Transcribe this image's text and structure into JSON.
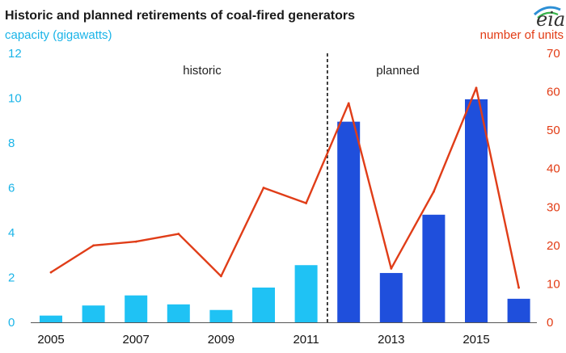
{
  "chart_data": {
    "type": "bar",
    "title": "Historic and planned retirements of coal-fired generators",
    "ylabel_left": "capacity (gigawatts)",
    "ylabel_right": "number of units",
    "logo": "eia",
    "x_tick_labels": [
      "2005",
      "2007",
      "2009",
      "2011",
      "2013",
      "2015"
    ],
    "regions": [
      {
        "label": "historic",
        "years": [
          2005,
          2011
        ]
      },
      {
        "label": "planned",
        "years": [
          2012,
          2016
        ]
      }
    ],
    "divider_between": [
      2011,
      2012
    ],
    "years": [
      2005,
      2006,
      2007,
      2008,
      2009,
      2010,
      2011,
      2012,
      2013,
      2014,
      2015,
      2016
    ],
    "series": [
      {
        "name": "capacity (gigawatts)",
        "type": "bar",
        "axis": "left",
        "values": [
          0.3,
          0.75,
          1.2,
          0.8,
          0.55,
          1.55,
          2.55,
          8.95,
          2.2,
          4.8,
          9.95,
          1.05
        ],
        "colors": {
          "historic": "#1fc2f4",
          "planned": "#1f4fdc"
        }
      },
      {
        "name": "number of units",
        "type": "line",
        "axis": "right",
        "values": [
          13,
          20,
          21,
          23,
          12,
          35,
          31,
          57,
          14,
          34,
          61,
          9
        ],
        "color": "#e03d18"
      }
    ],
    "ylim_left": [
      0,
      12
    ],
    "yticks_left": [
      0,
      2,
      4,
      6,
      8,
      10,
      12
    ],
    "ylim_right": [
      0,
      70
    ],
    "yticks_right": [
      0,
      10,
      20,
      30,
      40,
      50,
      60,
      70
    ],
    "grid": false,
    "legend": "none"
  }
}
